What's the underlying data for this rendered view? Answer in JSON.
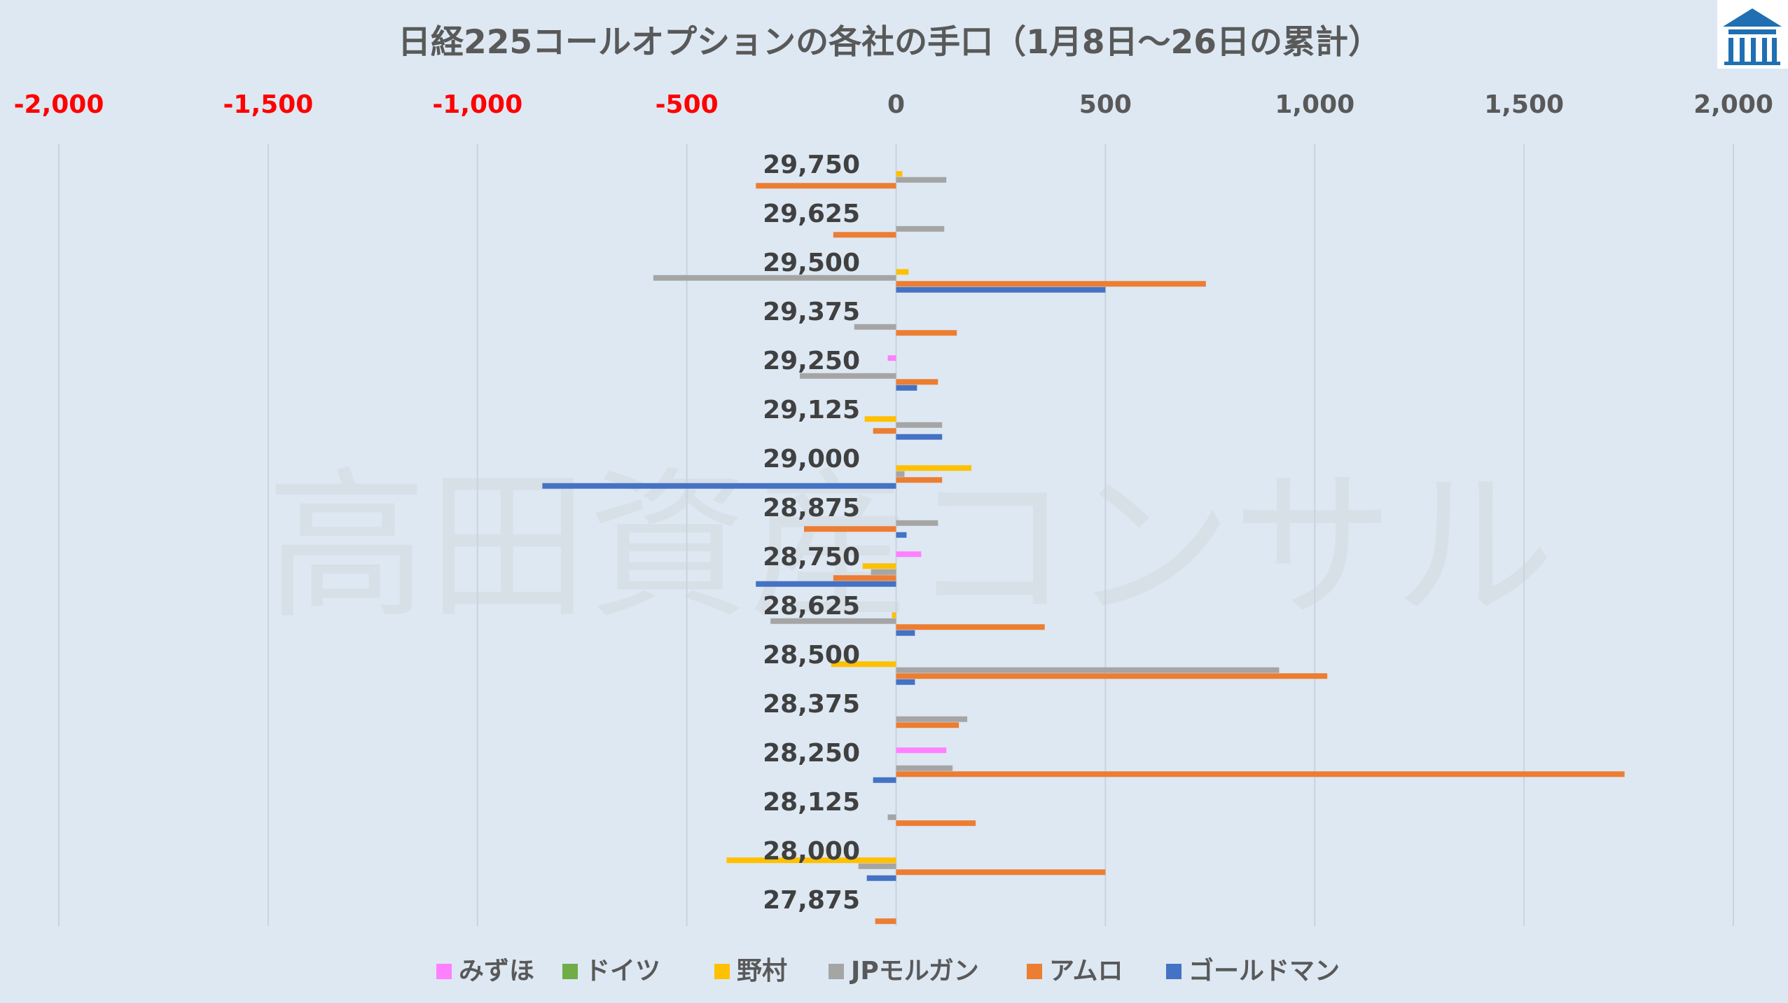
{
  "watermark": "高田資産コンサル",
  "chart_data": {
    "type": "bar",
    "orientation": "horizontal",
    "title": "日経225コールオプションの各社の手口（1月8日～26日の累計）",
    "xlim": [
      -2000,
      2000
    ],
    "x_ticks": [
      "-2,000",
      "-1,500",
      "-1,000",
      "-500",
      "0",
      "500",
      "1,000",
      "1,500",
      "2,000"
    ],
    "x_tick_values": [
      -2000,
      -1500,
      -1000,
      -500,
      0,
      500,
      1000,
      1500,
      2000
    ],
    "negative_tick_color": "#ff0000",
    "positive_tick_color": "#595959",
    "grid": true,
    "legend_position": "bottom",
    "categories": [
      "29,750",
      "29,625",
      "29,500",
      "29,375",
      "29,250",
      "29,125",
      "29,000",
      "28,875",
      "28,750",
      "28,625",
      "28,500",
      "28,375",
      "28,250",
      "28,125",
      "28,000",
      "27,875"
    ],
    "series": [
      {
        "name": "みずほ",
        "color": "#ff80ff",
        "values": [
          0,
          0,
          0,
          0,
          -20,
          0,
          0,
          0,
          60,
          0,
          0,
          0,
          120,
          0,
          0,
          0
        ]
      },
      {
        "name": "ドイツ",
        "color": "#70ad47",
        "values": [
          0,
          0,
          0,
          0,
          0,
          0,
          0,
          0,
          0,
          0,
          0,
          0,
          0,
          0,
          0,
          0
        ]
      },
      {
        "name": "野村",
        "color": "#ffc000",
        "values": [
          15,
          0,
          30,
          0,
          0,
          -75,
          180,
          0,
          -80,
          -10,
          -155,
          0,
          0,
          0,
          -405,
          0
        ]
      },
      {
        "name": "JPモルガン",
        "color": "#a5a5a5",
        "values": [
          120,
          115,
          -580,
          -100,
          -230,
          110,
          20,
          100,
          -60,
          -300,
          915,
          170,
          135,
          -20,
          -90,
          0
        ]
      },
      {
        "name": "アムロ",
        "color": "#ed7d31",
        "values": [
          -335,
          -150,
          740,
          145,
          100,
          -55,
          110,
          -220,
          -150,
          355,
          1030,
          150,
          1740,
          190,
          500,
          -50
        ]
      },
      {
        "name": "ゴールドマン",
        "color": "#4472c4",
        "values": [
          0,
          0,
          500,
          0,
          50,
          110,
          -845,
          25,
          -335,
          45,
          45,
          0,
          -55,
          0,
          -70,
          0
        ]
      }
    ]
  }
}
